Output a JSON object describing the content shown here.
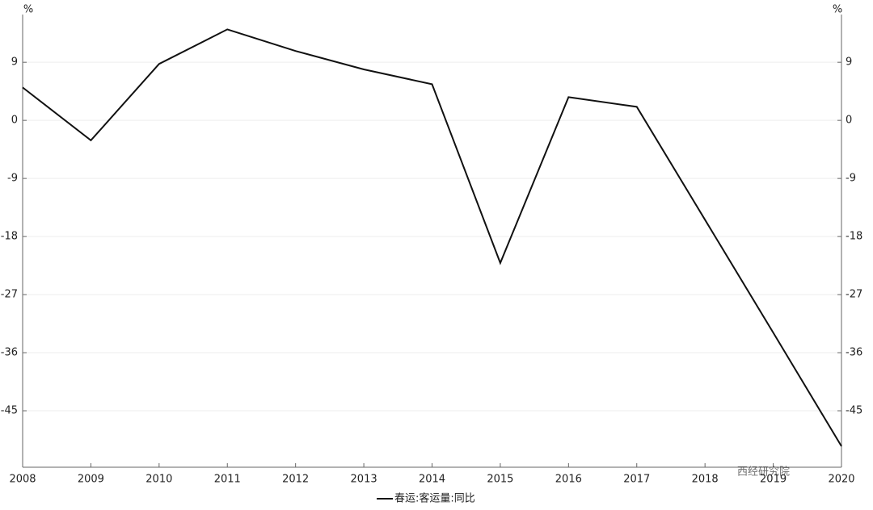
{
  "chart_data": {
    "type": "line",
    "y_unit": "%",
    "categories": [
      "2008",
      "2009",
      "2010",
      "2011",
      "2012",
      "2013",
      "2014",
      "2015",
      "2016",
      "2017",
      "2018",
      "2019",
      "2020"
    ],
    "series": [
      {
        "name": "春运:客运量:同比",
        "color": "#111111",
        "values": [
          5.1,
          -3.1,
          8.75,
          14.1,
          10.75,
          7.9,
          5.6,
          -22.1,
          3.6,
          2.1,
          -15.4,
          -32.9,
          -50.5
        ]
      }
    ],
    "ylim": [
      -53.75,
      16.4
    ],
    "yticks": [
      -45,
      -36,
      -27,
      -18,
      -9,
      0,
      9
    ],
    "y2lim": [
      -53.75,
      16.4
    ],
    "y2ticks": [
      -45,
      -36,
      -27,
      -18,
      -9,
      0,
      9
    ],
    "grid": true,
    "legend": "bottom",
    "watermark": "西经研究院"
  }
}
